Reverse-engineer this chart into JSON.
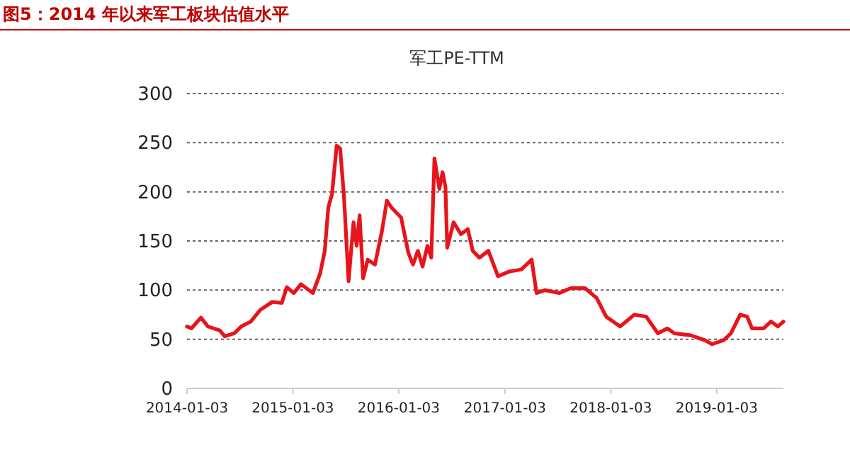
{
  "chart_data": {
    "type": "line",
    "title": "图5：2014 年以来军工板块估值水平",
    "subtitle": "军工PE-TTM",
    "x": [
      "2014-01-03",
      "2014-01-18",
      "2014-02-20",
      "2014-03-16",
      "2014-04-26",
      "2014-05-13",
      "2014-06-15",
      "2014-07-09",
      "2014-08-11",
      "2014-09-13",
      "2014-10-24",
      "2014-11-26",
      "2014-12-13",
      "2015-01-06",
      "2015-01-31",
      "2015-03-13",
      "2015-04-07",
      "2015-04-23",
      "2015-05-05",
      "2015-05-18",
      "2015-06-03",
      "2015-06-15",
      "2015-06-28",
      "2015-07-14",
      "2015-07-31",
      "2015-08-11",
      "2015-08-21",
      "2015-09-02",
      "2015-09-18",
      "2015-10-13",
      "2015-11-06",
      "2015-11-23",
      "2015-12-09",
      "2015-12-25",
      "2016-01-11",
      "2016-02-05",
      "2016-02-21",
      "2016-03-09",
      "2016-03-25",
      "2016-04-11",
      "2016-04-24",
      "2016-05-05",
      "2016-05-22",
      "2016-06-02",
      "2016-06-12",
      "2016-06-18",
      "2016-07-10",
      "2016-08-04",
      "2016-08-28",
      "2016-09-14",
      "2016-10-07",
      "2016-11-07",
      "2016-12-10",
      "2017-01-19",
      "2017-03-01",
      "2017-04-05",
      "2017-04-22",
      "2017-05-21",
      "2017-07-09",
      "2017-08-18",
      "2017-10-06",
      "2017-11-15",
      "2017-12-18",
      "2018-02-04",
      "2018-03-25",
      "2018-05-05",
      "2018-06-14",
      "2018-07-17",
      "2018-08-10",
      "2018-10-06",
      "2018-11-23",
      "2018-12-18",
      "2019-01-27",
      "2019-02-21",
      "2019-03-25",
      "2019-04-18",
      "2019-05-05",
      "2019-06-14",
      "2019-07-09",
      "2019-08-02",
      "2019-08-21"
    ],
    "series": [
      {
        "color": "#e8141b",
        "values": [
          63,
          61,
          72,
          63,
          59,
          53,
          56,
          63,
          68,
          80,
          88,
          87,
          103,
          97,
          106,
          97,
          117,
          140,
          184,
          198,
          247,
          244,
          196,
          109,
          169,
          145,
          176,
          112,
          131,
          126,
          160,
          191,
          184,
          179,
          174,
          138,
          126,
          140,
          124,
          145,
          133,
          234,
          203,
          220,
          205,
          143,
          169,
          157,
          162,
          140,
          133,
          140,
          114,
          119,
          121,
          131,
          97,
          100,
          97,
          102,
          102,
          92,
          73,
          63,
          75,
          73,
          56,
          61,
          56,
          54,
          49,
          45,
          49,
          56,
          75,
          73,
          61,
          61,
          68,
          63,
          68
        ]
      }
    ],
    "xlim": [
      "2014-01-03",
      "2019-08-21"
    ],
    "xticks": [
      "2014-01-03",
      "2015-01-03",
      "2016-01-03",
      "2017-01-03",
      "2018-01-03",
      "2019-01-03"
    ],
    "ylim": [
      0,
      300
    ],
    "yticks": [
      0,
      50,
      100,
      150,
      200,
      250,
      300
    ],
    "grid": "y",
    "marker": "none",
    "line_style": "solid"
  }
}
